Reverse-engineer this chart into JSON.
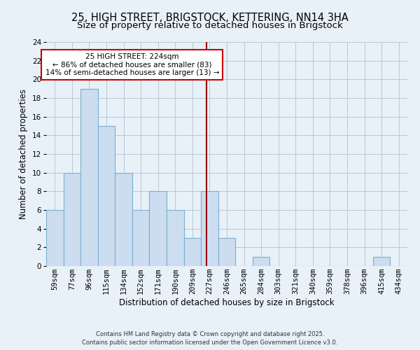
{
  "title": "25, HIGH STREET, BRIGSTOCK, KETTERING, NN14 3HA",
  "subtitle": "Size of property relative to detached houses in Brigstock",
  "xlabel": "Distribution of detached houses by size in Brigstock",
  "ylabel": "Number of detached properties",
  "categories": [
    "59sqm",
    "77sqm",
    "96sqm",
    "115sqm",
    "134sqm",
    "152sqm",
    "171sqm",
    "190sqm",
    "209sqm",
    "227sqm",
    "246sqm",
    "265sqm",
    "284sqm",
    "303sqm",
    "321sqm",
    "340sqm",
    "359sqm",
    "378sqm",
    "396sqm",
    "415sqm",
    "434sqm"
  ],
  "values": [
    6,
    10,
    19,
    15,
    10,
    6,
    8,
    6,
    3,
    8,
    3,
    0,
    1,
    0,
    0,
    0,
    0,
    0,
    0,
    1,
    0
  ],
  "bar_color": "#ccddf0",
  "bar_edgecolor": "#7aaed0",
  "background_color": "#e8f0f8",
  "plot_bg_color": "#e8f0f8",
  "vline_color": "#990000",
  "vline_x_idx": 8.83,
  "ylim_max": 24,
  "ytick_step": 2,
  "annotation_title": "25 HIGH STREET: 224sqm",
  "annotation_line1": "← 86% of detached houses are smaller (83)",
  "annotation_line2": "14% of semi-detached houses are larger (13) →",
  "annotation_box_facecolor": "#ffffff",
  "annotation_box_edgecolor": "#cc0000",
  "footer_line1": "Contains HM Land Registry data © Crown copyright and database right 2025.",
  "footer_line2": "Contains public sector information licensed under the Open Government Licence v3.0.",
  "title_fontsize": 10.5,
  "subtitle_fontsize": 9.5,
  "ylabel_fontsize": 8.5,
  "xlabel_fontsize": 8.5,
  "tick_fontsize": 7.5,
  "annotation_fontsize": 7.5,
  "footer_fontsize": 6.0,
  "grid_color": "#b8c8d8",
  "spine_color": "#b8c8d8"
}
